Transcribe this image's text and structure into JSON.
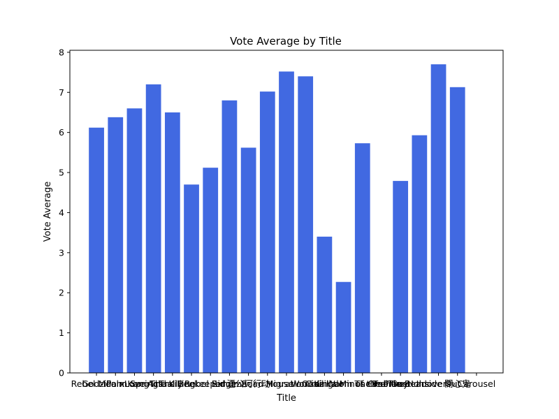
{
  "chart_data": {
    "type": "bar",
    "title": "Vote Average by Title",
    "xlabel": "Title",
    "ylabel": "Vote Average",
    "ylim": [
      0,
      8.05
    ],
    "yticks": [
      0,
      1,
      2,
      3,
      4,
      5,
      6,
      7,
      8
    ],
    "grid": false,
    "bar_color": "#4169e1",
    "categories": [
      "Rebel Moon",
      "Godzilla x Kong",
      "Palm Springs",
      "Love Actually",
      "The Killing",
      "The Beekeeper",
      "Rebel Ridge",
      "Exhuma",
      "湮公河行动",
      "Road House",
      "Migration",
      "Wonka",
      "Civil War",
      "Godzilla Minus One",
      "Kingdom of the Planet",
      "The Fall Guy",
      "Boonie Bears",
      "The Holdovers",
      "Inside Out",
      "開心鬼",
      "Carousel"
    ],
    "values": [
      6.12,
      6.38,
      6.6,
      7.2,
      6.5,
      4.7,
      5.12,
      6.8,
      5.62,
      7.02,
      7.52,
      7.4,
      3.4,
      2.27,
      5.73,
      0,
      4.79,
      5.93,
      7.7,
      7.13,
      0
    ]
  }
}
